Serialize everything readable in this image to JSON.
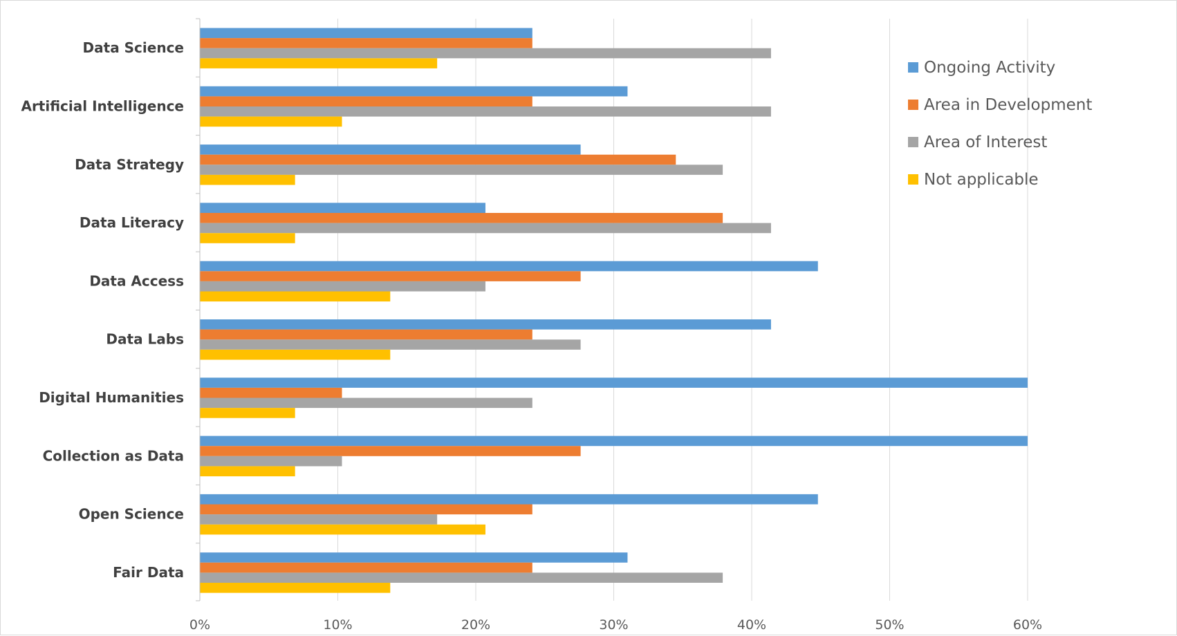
{
  "chart_data": {
    "type": "bar",
    "orientation": "horizontal",
    "categories": [
      "Data Science",
      "Artificial Intelligence",
      "Data Strategy",
      "Data Literacy",
      "Data Access",
      "Data Labs",
      "Digital Humanities",
      "Collection as Data",
      "Open Science",
      "Fair Data"
    ],
    "series": [
      {
        "name": "Ongoing Activity",
        "color": "#5b9bd5",
        "values": [
          24.1,
          31.0,
          27.6,
          20.7,
          44.8,
          41.4,
          60.0,
          60.0,
          44.8,
          31.0
        ]
      },
      {
        "name": "Area in Development",
        "color": "#ed7d31",
        "values": [
          24.1,
          24.1,
          34.5,
          37.9,
          27.6,
          24.1,
          10.3,
          27.6,
          24.1,
          24.1
        ]
      },
      {
        "name": "Area of Interest",
        "color": "#a5a5a5",
        "values": [
          41.4,
          41.4,
          37.9,
          41.4,
          20.7,
          27.6,
          24.1,
          10.3,
          17.2,
          37.9
        ]
      },
      {
        "name": "Not applicable",
        "color": "#ffc000",
        "values": [
          17.2,
          10.3,
          6.9,
          6.9,
          13.8,
          13.8,
          6.9,
          6.9,
          20.7,
          13.8
        ]
      }
    ],
    "xlim": [
      0,
      60
    ],
    "xticks": [
      0,
      10,
      20,
      30,
      40,
      50,
      60
    ],
    "xtick_labels": [
      "0%",
      "10%",
      "20%",
      "30%",
      "40%",
      "50%",
      "60%"
    ],
    "grid": true,
    "legend_position": "top-right",
    "title": "",
    "xlabel": "",
    "ylabel": ""
  }
}
